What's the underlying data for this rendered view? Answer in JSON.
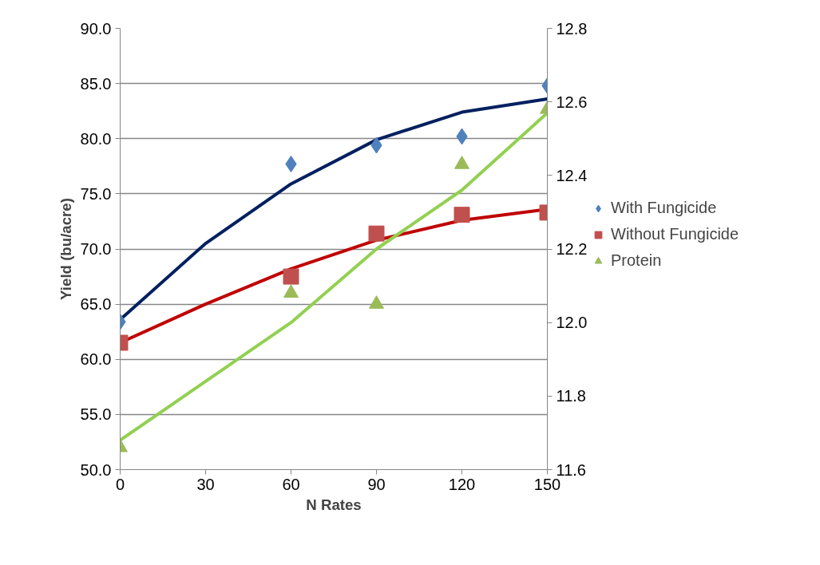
{
  "chart_data": {
    "type": "scatter",
    "xlabel": "N Rates",
    "ylabel": "Yield (bu/acre)",
    "x": [
      0,
      60,
      90,
      120,
      150
    ],
    "xlim": [
      0,
      150
    ],
    "xticks": [
      0,
      30,
      60,
      90,
      120,
      150
    ],
    "ylim": [
      50,
      90
    ],
    "yticks": [
      {
        "value": 50,
        "label": "50.0"
      },
      {
        "value": 55,
        "label": "55.0"
      },
      {
        "value": 60,
        "label": "60.0"
      },
      {
        "value": 65,
        "label": "65.0"
      },
      {
        "value": 70,
        "label": "70.0"
      },
      {
        "value": 75,
        "label": "75.0"
      },
      {
        "value": 80,
        "label": "80.0"
      },
      {
        "value": 85,
        "label": "85.0"
      },
      {
        "value": 90,
        "label": "90.0"
      }
    ],
    "y2lim": [
      11.6,
      12.8
    ],
    "y2ticks": [
      {
        "value": 11.6,
        "label": "11.6"
      },
      {
        "value": 11.8,
        "label": "11.8"
      },
      {
        "value": 12.0,
        "label": "12.0"
      },
      {
        "value": 12.2,
        "label": "12.2"
      },
      {
        "value": 12.4,
        "label": "12.4"
      },
      {
        "value": 12.6,
        "label": "12.6"
      },
      {
        "value": 12.8,
        "label": "12.8"
      }
    ],
    "grid": "y",
    "legend": "right",
    "series": [
      {
        "name": "With Fungicide",
        "color": "#4f81bd",
        "marker": "diamond",
        "values": [
          63.4,
          77.7,
          79.4,
          80.2,
          84.8
        ]
      },
      {
        "name": "Without Fungicide",
        "color": "#c0504d",
        "marker": "square",
        "values": [
          61.5,
          67.5,
          71.4,
          73.1,
          73.3
        ]
      },
      {
        "name": "Protein",
        "color": "#9bbb59",
        "marker": "triangle",
        "axis": "y2",
        "values": [
          11.66,
          12.08,
          12.05,
          12.43,
          12.58
        ]
      },
      {
        "type": "line",
        "color": "#002060",
        "x": [
          0,
          30,
          60,
          90,
          120,
          150
        ],
        "values": [
          63.6,
          70.5,
          75.9,
          79.9,
          82.4,
          83.6
        ]
      },
      {
        "type": "line",
        "color": "#c00000",
        "x": [
          0,
          30,
          60,
          90,
          120,
          150
        ],
        "values": [
          61.5,
          65.0,
          68.2,
          70.8,
          72.6,
          73.6
        ]
      },
      {
        "type": "line",
        "color": "#92d050",
        "axis": "y2",
        "x": [
          0,
          30,
          60,
          90,
          120,
          150
        ],
        "values": [
          11.68,
          11.84,
          12.0,
          12.2,
          12.36,
          12.57
        ]
      }
    ]
  }
}
